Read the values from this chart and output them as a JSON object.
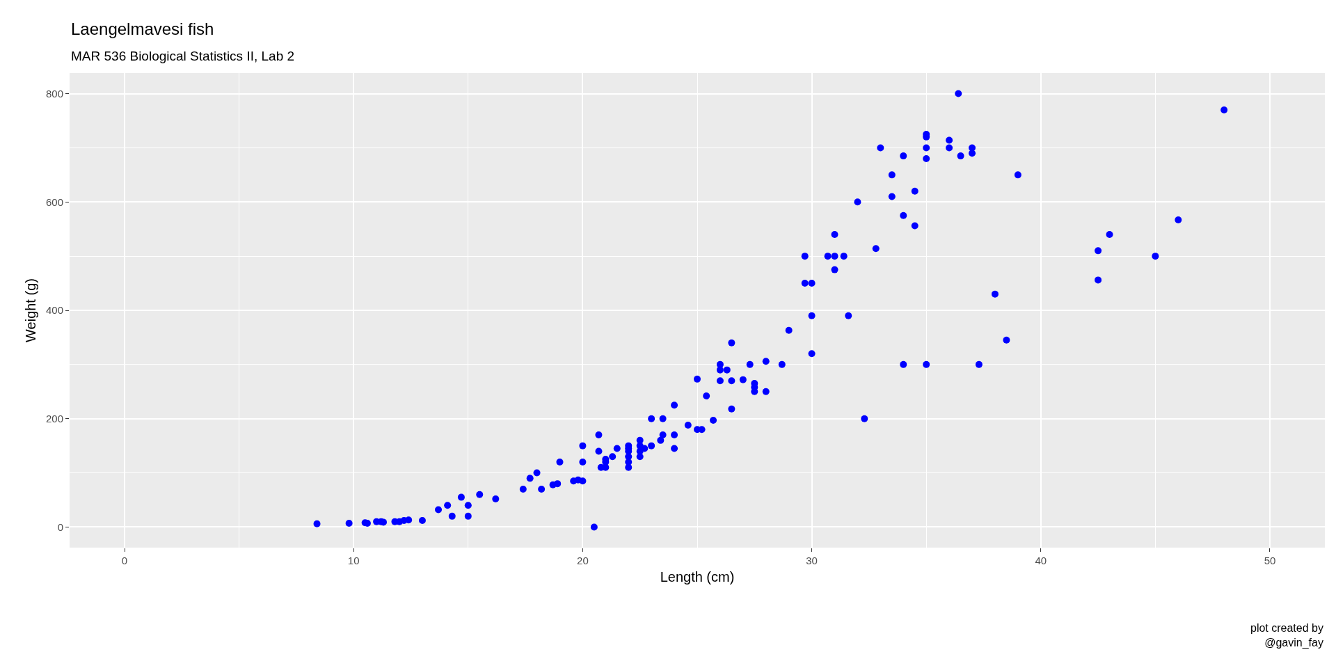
{
  "chart_data": {
    "type": "scatter",
    "title": "Laengelmavesi fish",
    "subtitle": "MAR 536 Biological Statistics II, Lab 2",
    "xlabel": "Length (cm)",
    "ylabel": "Weight (g)",
    "annotations": [
      "plot created by\n@gavin_fay"
    ],
    "x": [
      8.4,
      9.8,
      10.5,
      10.6,
      11,
      11.2,
      11.3,
      11.8,
      12,
      12.2,
      12.4,
      13,
      13.7,
      14.1,
      14.3,
      14.7,
      15,
      15,
      15.5,
      16.2,
      17.4,
      17.7,
      18,
      18.2,
      18.7,
      18.9,
      19,
      19.6,
      19.8,
      20,
      20,
      20,
      20.5,
      20.7,
      20.7,
      20.8,
      21,
      21,
      21,
      21.3,
      21.5,
      22,
      22,
      22,
      22,
      22,
      22,
      22.5,
      22.5,
      22.5,
      22.5,
      22.7,
      23,
      23,
      23.4,
      23.5,
      23.5,
      24,
      24,
      24,
      24.6,
      25,
      25,
      25.2,
      25.4,
      25.7,
      26,
      26,
      26,
      26.3,
      26.5,
      26.5,
      26.5,
      27,
      27.3,
      27.5,
      27.5,
      27.5,
      28,
      28,
      28.7,
      29,
      29.7,
      29.7,
      30,
      30,
      30,
      30.7,
      31,
      31,
      31,
      31.4,
      31.6,
      32,
      32.3,
      32.8,
      33,
      33.5,
      33.5,
      34,
      34,
      34,
      34.5,
      34.5,
      35,
      35,
      35,
      35,
      35,
      36,
      36,
      36.4,
      36.5,
      37,
      37,
      37.3,
      38,
      38.5,
      39,
      42.5,
      42.5,
      43,
      45,
      46,
      48
    ],
    "values": [
      6,
      7,
      8,
      7,
      10,
      10,
      9,
      10,
      10,
      12,
      13,
      12,
      32,
      40,
      20,
      55,
      40,
      20,
      60,
      52,
      70,
      90,
      100,
      70,
      78,
      80,
      120,
      85,
      87,
      85,
      120,
      150,
      0,
      170,
      140,
      110,
      110,
      120,
      125,
      130,
      145,
      110,
      120,
      130,
      140,
      145,
      150,
      130,
      140,
      150,
      160,
      145,
      150,
      200,
      160,
      170,
      200,
      145,
      170,
      225,
      188,
      180,
      273,
      180,
      242,
      197,
      270,
      290,
      300,
      290,
      218,
      270,
      340,
      272,
      300,
      250,
      258,
      265,
      250,
      306,
      300,
      363,
      450,
      500,
      320,
      390,
      450,
      500,
      475,
      500,
      540,
      500,
      390,
      600,
      200,
      514,
      700,
      610,
      650,
      300,
      575,
      685,
      556,
      620,
      300,
      680,
      700,
      720,
      725,
      700,
      714,
      800,
      685,
      690,
      700,
      300,
      430,
      345,
      650,
      456,
      510,
      540,
      500,
      567,
      770
    ],
    "color": "#0000ff",
    "marker": "circle",
    "xlim": [
      -2.4,
      52.4
    ],
    "ylim": [
      -38,
      838
    ],
    "xticks": [
      0,
      10,
      20,
      30,
      40,
      50
    ],
    "yticks": [
      0,
      200,
      400,
      600,
      800
    ],
    "grid": true,
    "legend": false
  }
}
